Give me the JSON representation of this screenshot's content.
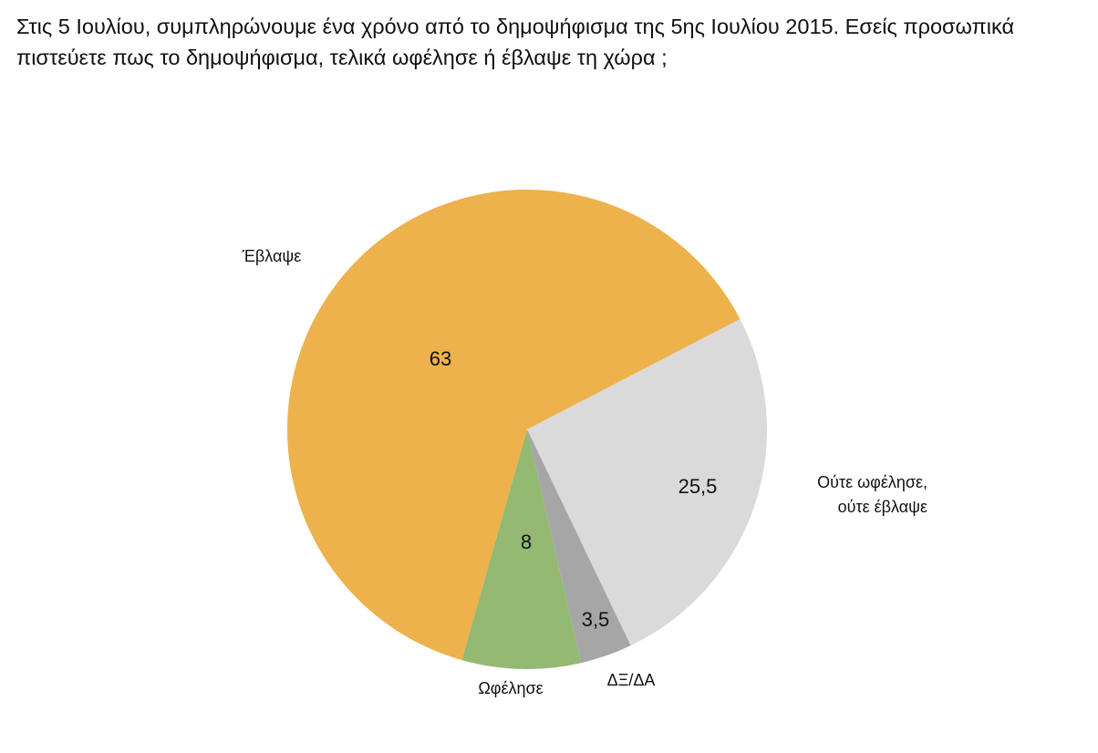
{
  "chart_data": {
    "type": "pie",
    "title": "Στις 5 Ιουλίου, συμπληρώνουμε ένα χρόνο από το δημοψήφισμα της 5ης Ιουλίου 2015. Εσείς προσωπικά πιστεύετε πως το δημοψήφισμα, τελικά ωφέλησε ή έβλαψε τη χώρα ;",
    "categories": [
      "Ούτε ωφέλησε, ούτε έβλαψε",
      "ΔΞ/ΔΑ",
      "Ωφέλησε",
      "Έβλαψε"
    ],
    "values": [
      25.5,
      3.5,
      8,
      63
    ],
    "value_labels": [
      "25,5",
      "3,5",
      "8",
      "63"
    ],
    "colors": [
      "#dadada",
      "#a6a6a6",
      "#93b972",
      "#edb24c"
    ]
  }
}
